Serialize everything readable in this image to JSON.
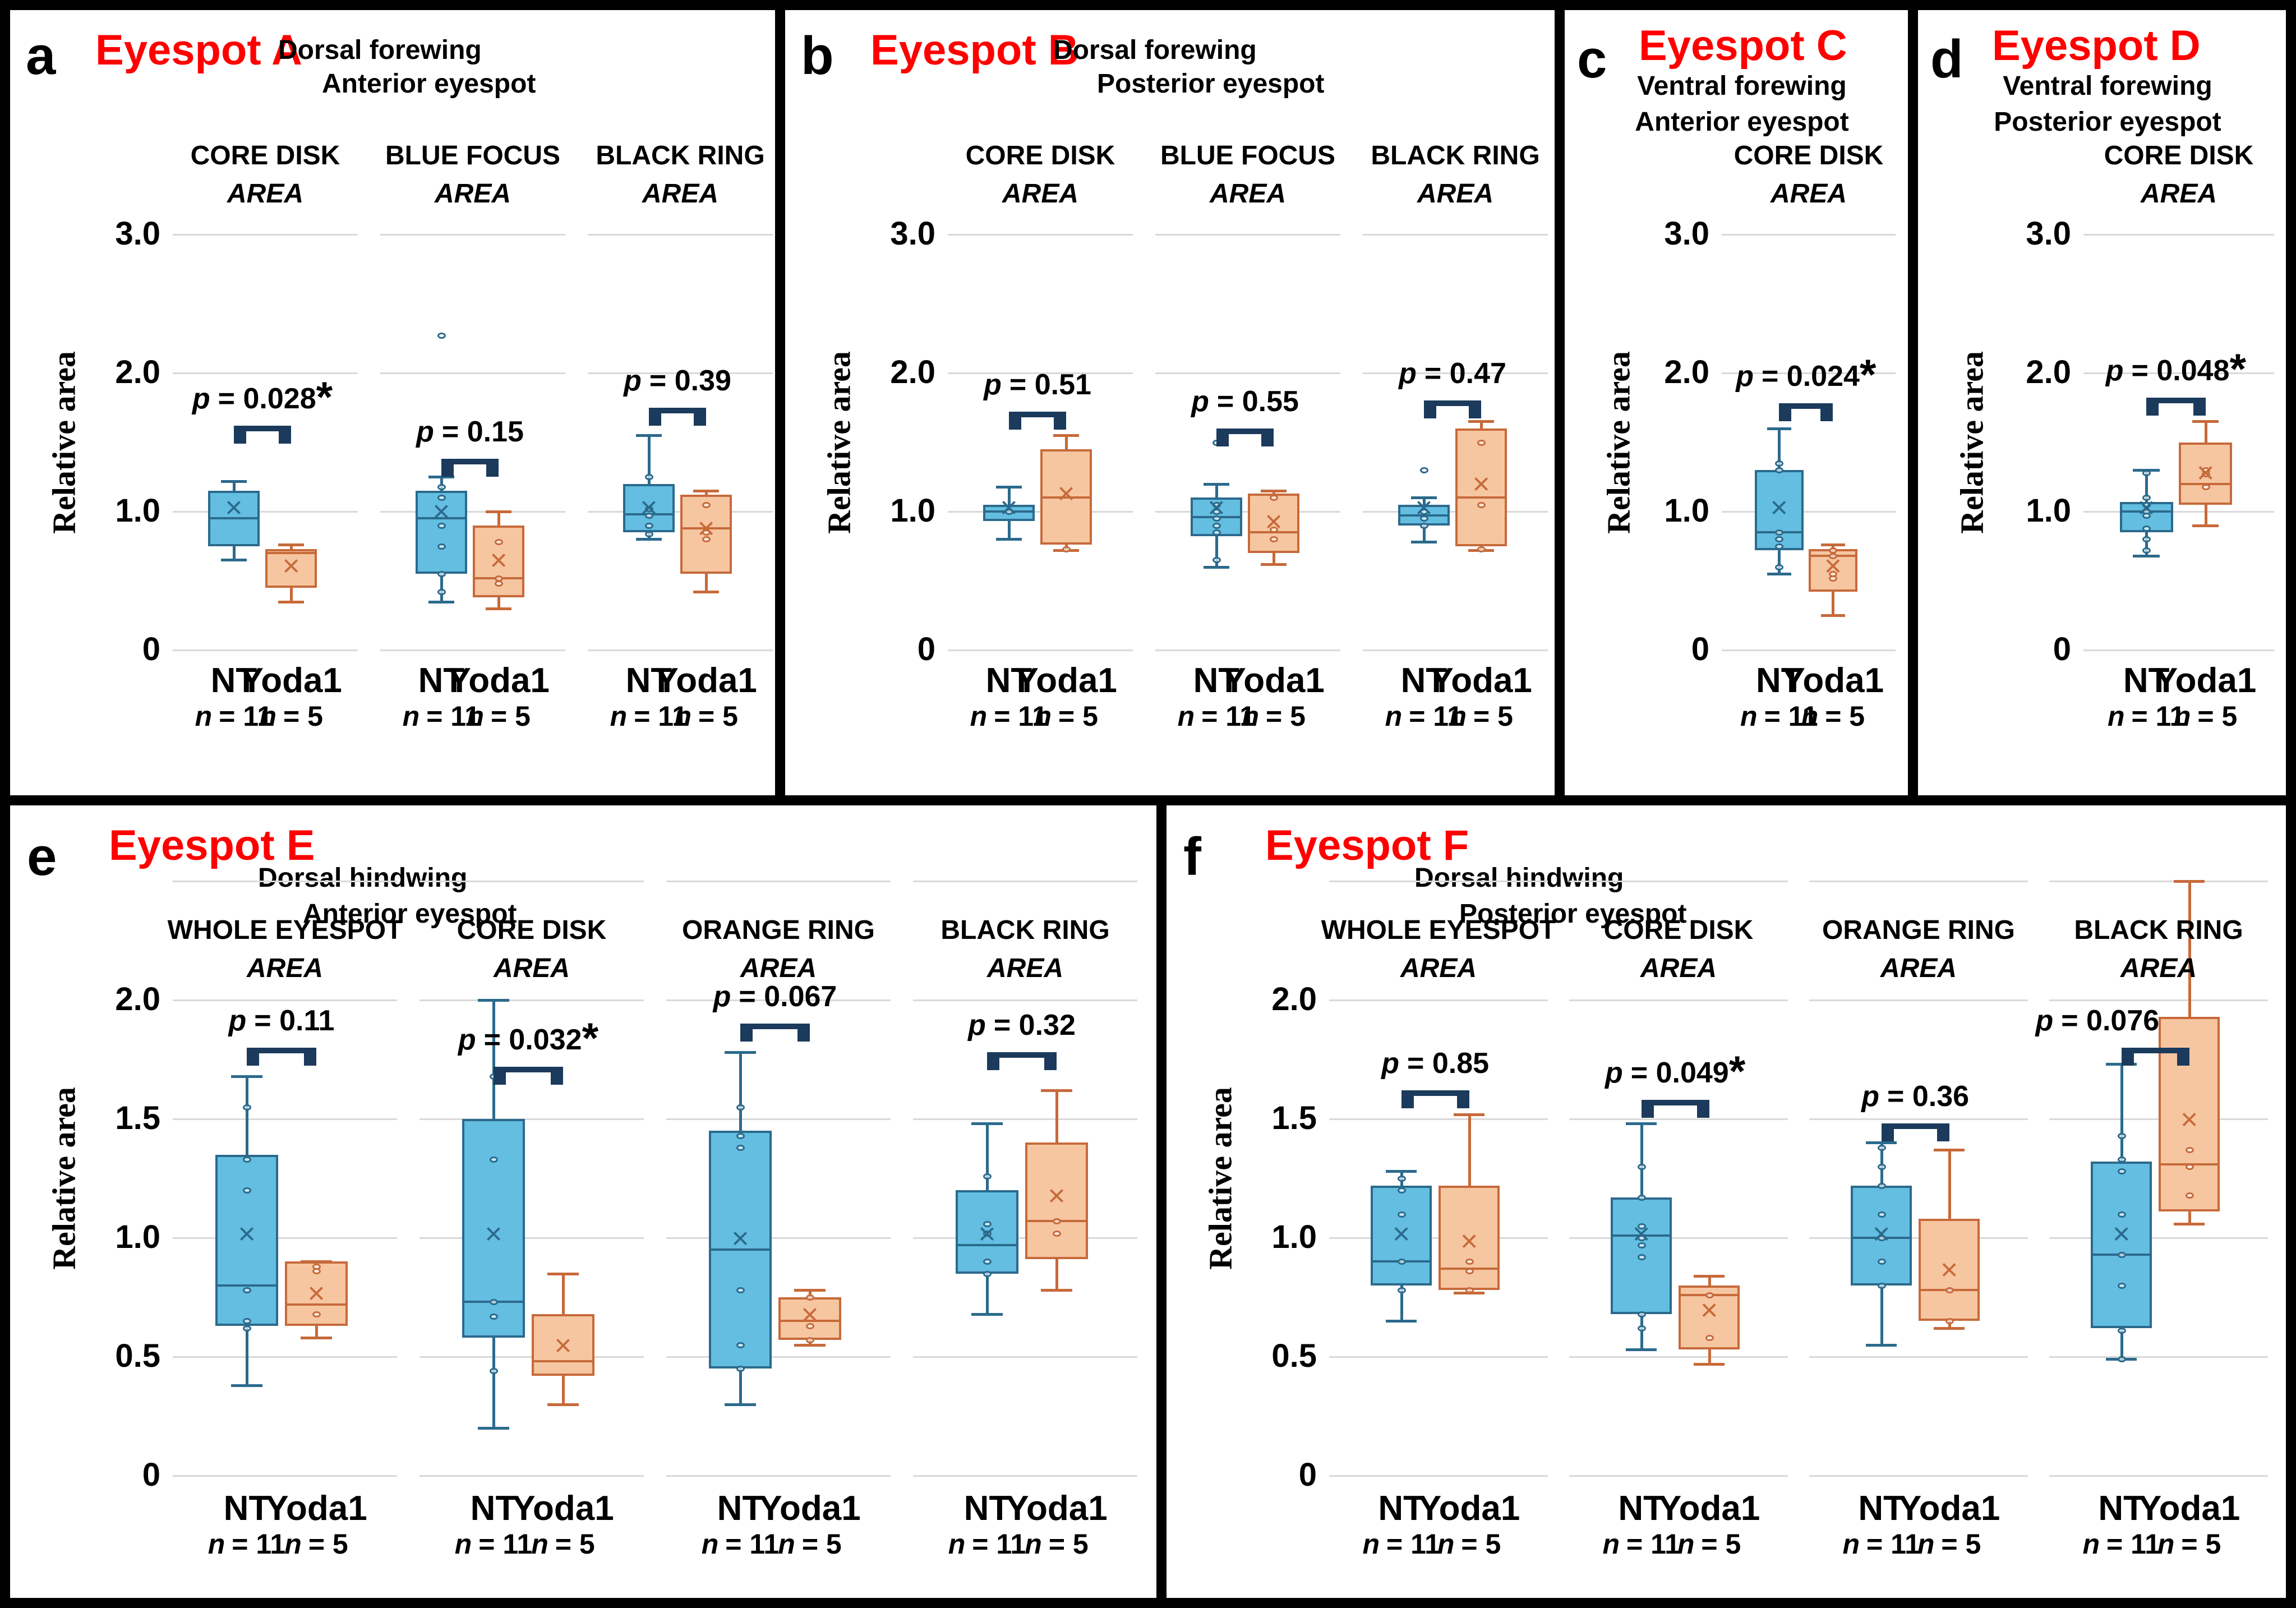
{
  "labels": {
    "p_symbol": "p",
    "n_symbol": "n",
    "relative_area": "Relative area"
  },
  "markers": {
    "mean": "×"
  },
  "colors": {
    "nt_fill": "#63BEE1",
    "nt_stroke": "#2B6A8C",
    "yoda_fill": "#F6C6A1",
    "yoda_stroke": "#C76A3A",
    "bracket": "#1B3A5C",
    "grid": "#D9D9D9",
    "title_red": "#FF0000"
  },
  "groups": {
    "nt": {
      "label": "NT",
      "n_eq": "= 11"
    },
    "yoda": {
      "label": "Yoda1",
      "n_eq": "= 5"
    }
  },
  "chart_data": {
    "type": "box",
    "x_categories": [
      "NT",
      "Yoda1"
    ],
    "ylabel": "Relative area",
    "panels": [
      {
        "id": "a",
        "letter": "a",
        "title": "Eyespot A",
        "wing": "Dorsal forewing",
        "site": "Anterior eyespot",
        "ylim_top": [
          0,
          3.0
        ],
        "yticks": [
          {
            "v": 0,
            "label": "0"
          },
          {
            "v": 1,
            "label": "1.0"
          },
          {
            "v": 2,
            "label": "2.0"
          },
          {
            "v": 3,
            "label": "3.0"
          }
        ],
        "subplots": [
          {
            "measure": "CORE DISK",
            "area": "AREA",
            "p_eq": "= 0.028",
            "sig": "*",
            "bracket_y": 1.62,
            "nt": {
              "lo": 0.65,
              "q1": 0.75,
              "med": 0.95,
              "q3": 1.15,
              "hi": 1.22,
              "mean": 1.0,
              "points": []
            },
            "yoda": {
              "lo": 0.35,
              "q1": 0.45,
              "med": 0.7,
              "q3": 0.73,
              "hi": 0.76,
              "mean": 0.58,
              "points": []
            }
          },
          {
            "measure": "BLUE FOCUS",
            "area": "AREA",
            "p_eq": "= 0.15",
            "sig": "",
            "bracket_y": 1.38,
            "nt": {
              "lo": 0.35,
              "q1": 0.55,
              "med": 0.95,
              "q3": 1.15,
              "hi": 1.25,
              "mean": 0.97,
              "points": [
                2.27,
                1.18,
                1.1,
                0.9,
                0.75,
                0.55,
                0.42
              ]
            },
            "yoda": {
              "lo": 0.3,
              "q1": 0.38,
              "med": 0.52,
              "q3": 0.9,
              "hi": 1.0,
              "mean": 0.62,
              "points": [
                0.78,
                0.52,
                0.48
              ]
            }
          },
          {
            "measure": "BLACK RING",
            "area": "AREA",
            "p_eq": "= 0.39",
            "sig": "",
            "bracket_y": 1.75,
            "nt": {
              "lo": 0.8,
              "q1": 0.85,
              "med": 0.98,
              "q3": 1.2,
              "hi": 1.55,
              "mean": 1.0,
              "points": [
                1.25,
                1.02,
                0.97,
                0.9,
                0.84
              ]
            },
            "yoda": {
              "lo": 0.42,
              "q1": 0.55,
              "med": 0.88,
              "q3": 1.12,
              "hi": 1.15,
              "mean": 0.85,
              "points": [
                1.05,
                0.85,
                0.8
              ]
            }
          }
        ]
      },
      {
        "id": "b",
        "letter": "b",
        "title": "Eyespot B",
        "wing": "Dorsal forewing",
        "site": "Posterior eyespot",
        "ylim_top": [
          0,
          3.0
        ],
        "yticks": [
          {
            "v": 0,
            "label": "0"
          },
          {
            "v": 1,
            "label": "1.0"
          },
          {
            "v": 2,
            "label": "2.0"
          },
          {
            "v": 3,
            "label": "3.0"
          }
        ],
        "subplots": [
          {
            "measure": "CORE DISK",
            "area": "AREA",
            "p_eq": "= 0.51",
            "sig": "",
            "bracket_y": 1.72,
            "nt": {
              "lo": 0.8,
              "q1": 0.93,
              "med": 1.0,
              "q3": 1.05,
              "hi": 1.18,
              "mean": 1.0,
              "points": [
                1.0
              ]
            },
            "yoda": {
              "lo": 0.72,
              "q1": 0.76,
              "med": 1.1,
              "q3": 1.45,
              "hi": 1.55,
              "mean": 1.1,
              "points": [
                0.73
              ]
            }
          },
          {
            "measure": "BLUE FOCUS",
            "area": "AREA",
            "p_eq": "= 0.55",
            "sig": "",
            "bracket_y": 1.6,
            "nt": {
              "lo": 0.6,
              "q1": 0.82,
              "med": 0.96,
              "q3": 1.1,
              "hi": 1.2,
              "mean": 1.0,
              "points": [
                1.5,
                1.05,
                1.0,
                0.95,
                0.9,
                0.85,
                0.65
              ]
            },
            "yoda": {
              "lo": 0.62,
              "q1": 0.7,
              "med": 0.85,
              "q3": 1.13,
              "hi": 1.15,
              "mean": 0.9,
              "points": [
                1.1,
                0.87,
                0.8
              ]
            }
          },
          {
            "measure": "BLACK RING",
            "area": "AREA",
            "p_eq": "= 0.47",
            "sig": "",
            "bracket_y": 1.8,
            "nt": {
              "lo": 0.78,
              "q1": 0.9,
              "med": 0.97,
              "q3": 1.05,
              "hi": 1.1,
              "mean": 1.0,
              "points": [
                1.3,
                1.0,
                0.95,
                0.9
              ]
            },
            "yoda": {
              "lo": 0.72,
              "q1": 0.75,
              "med": 1.1,
              "q3": 1.6,
              "hi": 1.65,
              "mean": 1.17,
              "points": [
                1.5,
                1.05,
                0.73
              ]
            }
          }
        ]
      },
      {
        "id": "c",
        "letter": "c",
        "title": "Eyespot C",
        "wing": "Ventral forewing",
        "site": "Anterior eyespot",
        "ylim_top": [
          0,
          3.0
        ],
        "yticks": [
          {
            "v": 0,
            "label": "0"
          },
          {
            "v": 1,
            "label": "1.0"
          },
          {
            "v": 2,
            "label": "2.0"
          },
          {
            "v": 3,
            "label": "3.0"
          }
        ],
        "subplots": [
          {
            "measure": "CORE DISK",
            "area": "AREA",
            "p_eq": "= 0.024",
            "sig": "*",
            "bracket_y": 1.78,
            "nt": {
              "lo": 0.55,
              "q1": 0.72,
              "med": 0.85,
              "q3": 1.3,
              "hi": 1.6,
              "mean": 1.0,
              "points": [
                1.35,
                1.3,
                0.85,
                0.8,
                0.75,
                0.6
              ]
            },
            "yoda": {
              "lo": 0.25,
              "q1": 0.42,
              "med": 0.68,
              "q3": 0.73,
              "hi": 0.76,
              "mean": 0.58,
              "points": [
                0.72,
                0.68,
                0.55,
                0.52
              ]
            }
          }
        ]
      },
      {
        "id": "d",
        "letter": "d",
        "title": "Eyespot D",
        "wing": "Ventral forewing",
        "site": "Posterior eyespot",
        "ylim_top": [
          0,
          3.0
        ],
        "yticks": [
          {
            "v": 0,
            "label": "0"
          },
          {
            "v": 1,
            "label": "1.0"
          },
          {
            "v": 2,
            "label": "2.0"
          },
          {
            "v": 3,
            "label": "3.0"
          }
        ],
        "subplots": [
          {
            "measure": "CORE DISK",
            "area": "AREA",
            "p_eq": "= 0.048",
            "sig": "*",
            "bracket_y": 1.82,
            "nt": {
              "lo": 0.68,
              "q1": 0.85,
              "med": 1.0,
              "q3": 1.07,
              "hi": 1.3,
              "mean": 1.0,
              "points": [
                1.28,
                1.1,
                1.05,
                1.0,
                0.97,
                0.88,
                0.8,
                0.72
              ]
            },
            "yoda": {
              "lo": 0.9,
              "q1": 1.05,
              "med": 1.2,
              "q3": 1.5,
              "hi": 1.65,
              "mean": 1.25,
              "points": [
                1.3,
                1.27,
                1.18
              ]
            }
          }
        ]
      },
      {
        "id": "e",
        "letter": "e",
        "title": "Eyespot E",
        "wing": "Dorsal hindwing",
        "site": "Anterior eyespot",
        "ylim_top": [
          0,
          2.5
        ],
        "yticks": [
          {
            "v": 0,
            "label": "0"
          },
          {
            "v": 0.5,
            "label": "0.5"
          },
          {
            "v": 1,
            "label": "1.0"
          },
          {
            "v": 1.5,
            "label": "1.5"
          },
          {
            "v": 2,
            "label": "2.0"
          }
        ],
        "subplots": [
          {
            "measure": "WHOLE EYESPOT",
            "area": "AREA",
            "p_eq": "= 0.11",
            "sig": "",
            "bracket_y": 1.8,
            "nt": {
              "lo": 0.38,
              "q1": 0.63,
              "med": 0.8,
              "q3": 1.35,
              "hi": 1.68,
              "mean": 1.0,
              "points": [
                1.55,
                1.33,
                1.2,
                0.78,
                0.65,
                0.62
              ]
            },
            "yoda": {
              "lo": 0.58,
              "q1": 0.63,
              "med": 0.72,
              "q3": 0.9,
              "hi": 0.9,
              "mean": 0.75,
              "points": [
                0.88,
                0.86,
                0.68
              ]
            }
          },
          {
            "measure": "CORE DISK",
            "area": "AREA",
            "p_eq": "= 0.032",
            "sig": "*",
            "bracket_y": 1.72,
            "nt": {
              "lo": 0.2,
              "q1": 0.58,
              "med": 0.73,
              "q3": 1.5,
              "hi": 2.0,
              "mean": 1.0,
              "points": [
                1.68,
                1.33,
                0.73,
                0.67,
                0.44
              ]
            },
            "yoda": {
              "lo": 0.3,
              "q1": 0.42,
              "med": 0.48,
              "q3": 0.68,
              "hi": 0.85,
              "mean": 0.53,
              "points": []
            }
          },
          {
            "measure": "ORANGE RING",
            "area": "AREA",
            "p_eq": "= 0.067",
            "sig": "",
            "bracket_y": 1.9,
            "nt": {
              "lo": 0.3,
              "q1": 0.45,
              "med": 0.95,
              "q3": 1.45,
              "hi": 1.78,
              "mean": 0.98,
              "points": [
                1.55,
                1.43,
                1.38,
                0.78,
                0.55,
                0.45
              ]
            },
            "yoda": {
              "lo": 0.55,
              "q1": 0.57,
              "med": 0.65,
              "q3": 0.75,
              "hi": 0.78,
              "mean": 0.66,
              "points": [
                0.75,
                0.63,
                0.57
              ]
            }
          },
          {
            "measure": "BLACK RING",
            "area": "AREA",
            "p_eq": "= 0.32",
            "sig": "",
            "bracket_y": 1.78,
            "nt": {
              "lo": 0.68,
              "q1": 0.85,
              "med": 0.97,
              "q3": 1.2,
              "hi": 1.48,
              "mean": 1.0,
              "points": [
                1.26,
                1.06,
                1.02,
                0.9,
                0.85
              ]
            },
            "yoda": {
              "lo": 0.78,
              "q1": 0.91,
              "med": 1.07,
              "q3": 1.4,
              "hi": 1.62,
              "mean": 1.16,
              "points": [
                1.07,
                1.02
              ]
            }
          }
        ]
      },
      {
        "id": "f",
        "letter": "f",
        "title": "Eyespot F",
        "wing": "Dorsal hindwing",
        "site": "Posterior eyespot",
        "ylim_top": [
          0,
          2.5
        ],
        "yticks": [
          {
            "v": 0,
            "label": "0"
          },
          {
            "v": 0.5,
            "label": "0.5"
          },
          {
            "v": 1,
            "label": "1.0"
          },
          {
            "v": 1.5,
            "label": "1.5"
          },
          {
            "v": 2,
            "label": "2.0"
          }
        ],
        "subplots": [
          {
            "measure": "WHOLE EYESPOT",
            "area": "AREA",
            "p_eq": "= 0.85",
            "sig": "",
            "bracket_y": 1.62,
            "nt": {
              "lo": 0.65,
              "q1": 0.8,
              "med": 0.9,
              "q3": 1.22,
              "hi": 1.28,
              "mean": 1.0,
              "points": [
                1.25,
                1.2,
                1.1,
                0.9,
                0.78
              ]
            },
            "yoda": {
              "lo": 0.77,
              "q1": 0.78,
              "med": 0.87,
              "q3": 1.22,
              "hi": 1.52,
              "mean": 0.97,
              "points": [
                0.9,
                0.86,
                0.78
              ]
            }
          },
          {
            "measure": "CORE DISK",
            "area": "AREA",
            "p_eq": "= 0.049",
            "sig": "*",
            "bracket_y": 1.58,
            "nt": {
              "lo": 0.53,
              "q1": 0.68,
              "med": 1.01,
              "q3": 1.17,
              "hi": 1.48,
              "mean": 1.0,
              "points": [
                1.3,
                1.17,
                1.05,
                1.0,
                0.97,
                0.92,
                0.68,
                0.62
              ]
            },
            "yoda": {
              "lo": 0.47,
              "q1": 0.53,
              "med": 0.76,
              "q3": 0.8,
              "hi": 0.84,
              "mean": 0.68,
              "points": [
                0.76,
                0.58
              ]
            }
          },
          {
            "measure": "ORANGE RING",
            "area": "AREA",
            "p_eq": "= 0.36",
            "sig": "",
            "bracket_y": 1.48,
            "nt": {
              "lo": 0.55,
              "q1": 0.8,
              "med": 1.0,
              "q3": 1.22,
              "hi": 1.4,
              "mean": 1.0,
              "points": [
                1.38,
                1.3,
                1.22,
                1.1,
                1.0,
                0.9,
                0.8
              ]
            },
            "yoda": {
              "lo": 0.62,
              "q1": 0.65,
              "med": 0.78,
              "q3": 1.08,
              "hi": 1.37,
              "mean": 0.85,
              "points": [
                0.78,
                0.65
              ]
            }
          },
          {
            "measure": "BLACK RING",
            "area": "AREA",
            "p_eq": "= 0.076",
            "sig": "",
            "bracket_y": 1.8,
            "p_align": "left",
            "nt": {
              "lo": 0.49,
              "q1": 0.62,
              "med": 0.93,
              "q3": 1.32,
              "hi": 1.73,
              "mean": 1.0,
              "points": [
                1.43,
                1.33,
                1.28,
                1.1,
                0.93,
                0.8,
                0.61,
                0.49
              ]
            },
            "yoda": {
              "lo": 1.06,
              "q1": 1.11,
              "med": 1.31,
              "q3": 1.93,
              "hi": 2.5,
              "mean": 1.48,
              "points": [
                1.37,
                1.3,
                1.18
              ]
            }
          }
        ]
      }
    ]
  }
}
